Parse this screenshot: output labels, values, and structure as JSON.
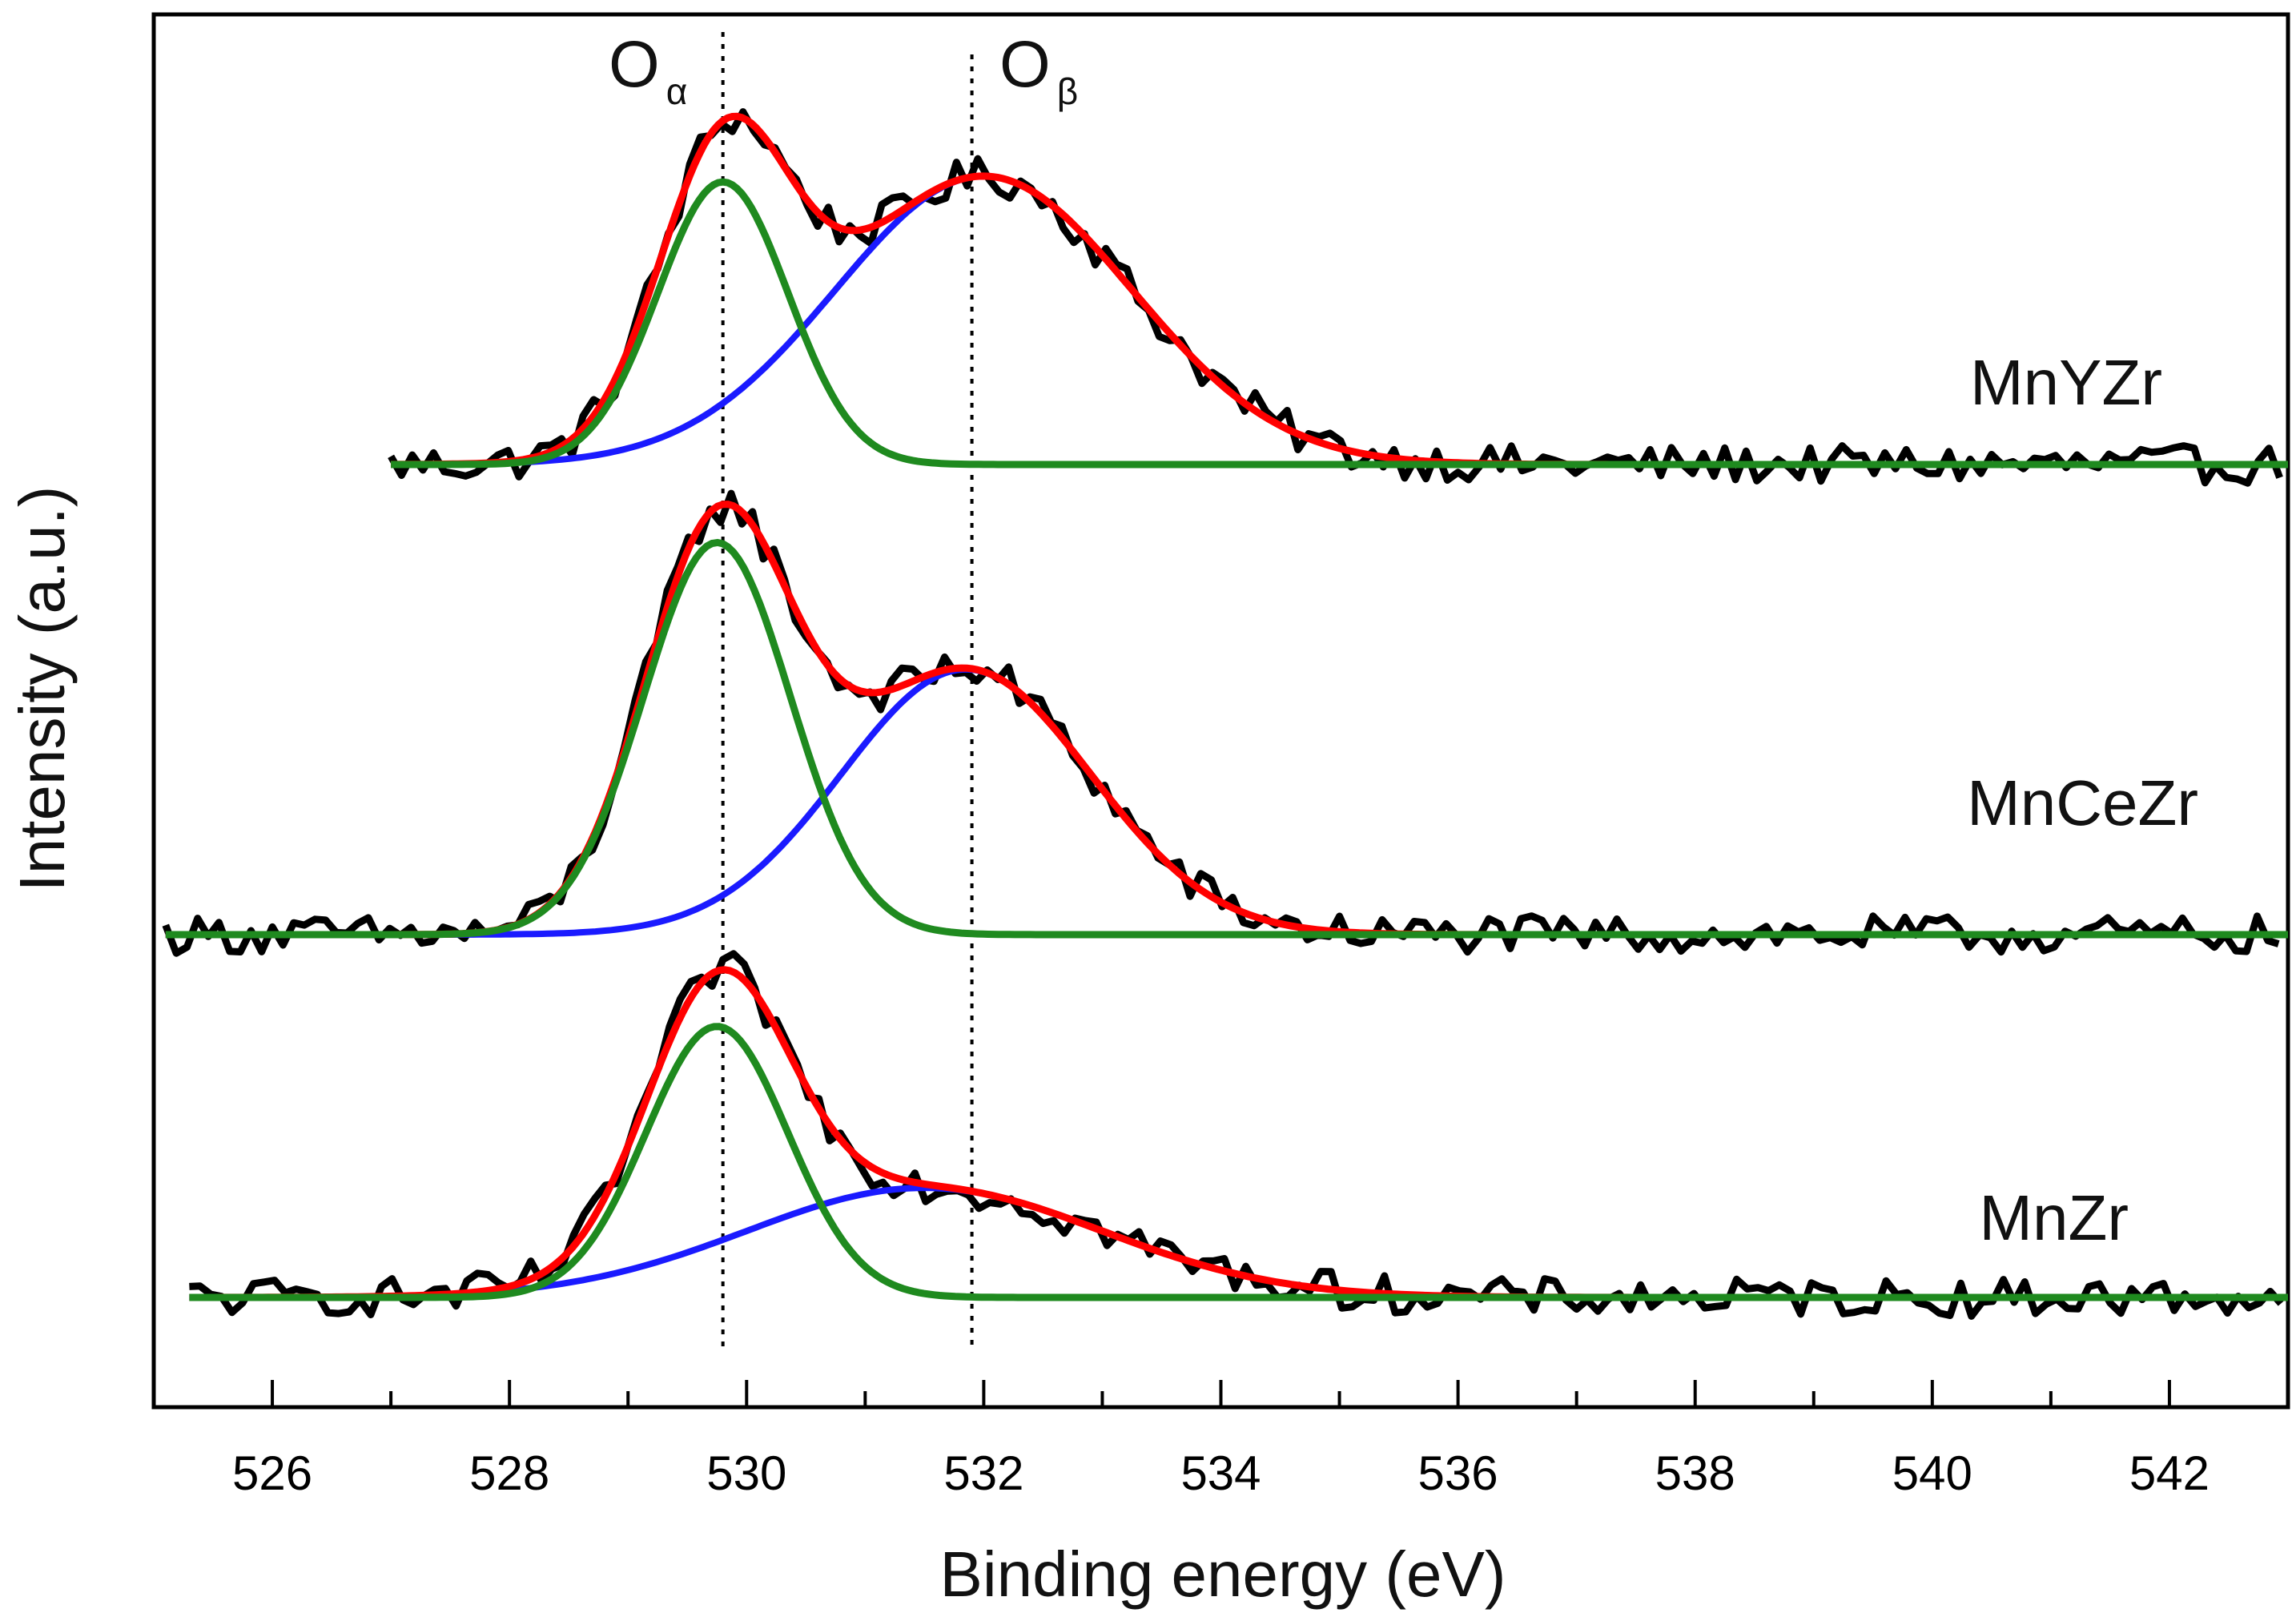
{
  "chart_data": {
    "type": "line",
    "title": "",
    "xlabel": "Binding energy (eV)",
    "ylabel": "Intensity (a.u.)",
    "xlim": [
      525,
      543
    ],
    "x_ticks": [
      526,
      528,
      530,
      532,
      534,
      536,
      538,
      540,
      542
    ],
    "y_ticks": [],
    "grid": false,
    "peak_markers": [
      {
        "name": "O",
        "subscript": "α",
        "x": 529.8
      },
      {
        "name": "O",
        "subscript": "β",
        "x": 531.9
      }
    ],
    "colors": {
      "raw": "#000000",
      "envelope": "#ff0000",
      "o_alpha_fit": "#1f8a1f",
      "o_beta_fit": "#1a1aff",
      "marker": "#000000"
    },
    "samples": [
      {
        "name": "MnYZr",
        "x_range": [
          527,
          543
        ],
        "baseline": 0.69,
        "components": [
          {
            "name": "O_alpha",
            "center": 529.8,
            "height": 0.98,
            "sigma": 0.55
          },
          {
            "name": "O_beta",
            "center": 532.0,
            "height": 1.0,
            "sigma": 1.25
          }
        ]
      },
      {
        "name": "MnCeZr",
        "x_range": [
          525.1,
          543
        ],
        "baseline": 0.35,
        "components": [
          {
            "name": "O_alpha",
            "center": 529.75,
            "height": 1.36,
            "sigma": 0.62
          },
          {
            "name": "O_beta",
            "center": 531.85,
            "height": 0.92,
            "sigma": 1.05
          }
        ]
      },
      {
        "name": "MnZr",
        "x_range": [
          525.3,
          543
        ],
        "baseline": 0.0,
        "components": [
          {
            "name": "O_alpha",
            "center": 529.75,
            "height": 0.94,
            "sigma": 0.6
          },
          {
            "name": "O_beta",
            "center": 531.5,
            "height": 0.38,
            "sigma": 1.5
          }
        ]
      }
    ]
  }
}
